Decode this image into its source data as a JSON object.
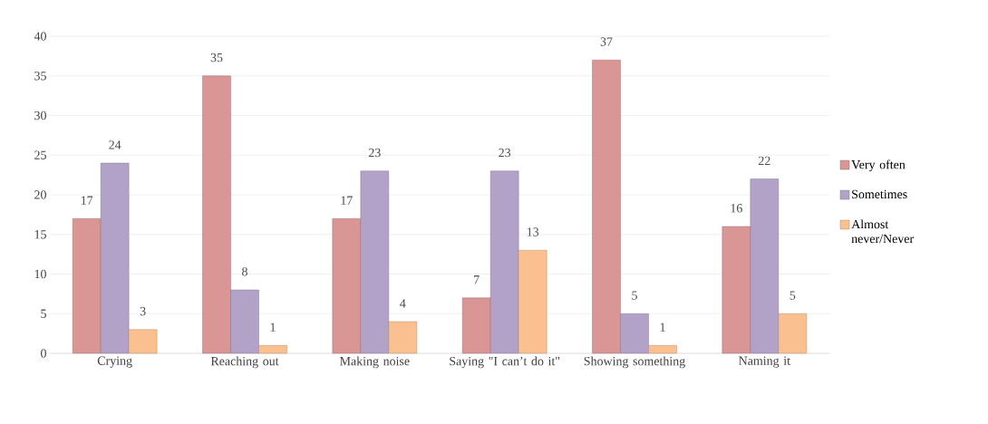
{
  "chart_data": {
    "type": "bar",
    "categories": [
      "Crying",
      "Reaching out",
      "Making noise",
      "Saying \"I can’t do it\"",
      "Showing something",
      "Naming it"
    ],
    "series": [
      {
        "name": "Very often",
        "color": "#d99694",
        "values": [
          17,
          35,
          17,
          7,
          37,
          16
        ]
      },
      {
        "name": "Sometimes",
        "color": "#b3a2c7",
        "values": [
          24,
          8,
          23,
          23,
          5,
          22
        ]
      },
      {
        "name": "Almost never/Never",
        "color": "#fac090",
        "values": [
          3,
          1,
          4,
          13,
          1,
          5
        ]
      }
    ],
    "ylim": [
      0,
      40
    ],
    "yticks": [
      0,
      5,
      10,
      15,
      20,
      25,
      30,
      35,
      40
    ],
    "grid": "y",
    "legend": "right",
    "data_labels": true
  }
}
